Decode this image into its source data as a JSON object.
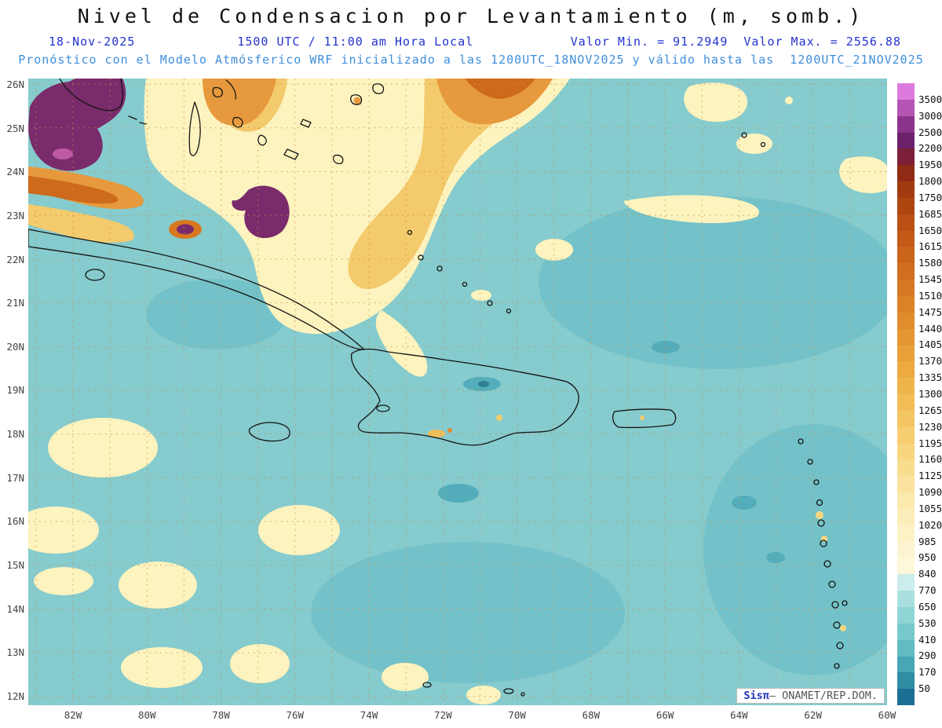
{
  "title": "Nivel de Condensacion por Levantamiento (m, somb.)",
  "header": {
    "date": "18-Nov-2025",
    "time": "1500 UTC / 11:00 am Hora Local",
    "min": "Valor Min. = 91.2949",
    "max": "Valor Max. = 2556.88",
    "forecast": "Pronóstico con el Modelo Atmósferico WRF inicializado a las 1200UTC_18NOV2025 y válido hasta las  1200UTC_21NOV2025"
  },
  "axes": {
    "lat": [
      "26N",
      "25N",
      "24N",
      "23N",
      "22N",
      "21N",
      "20N",
      "19N",
      "18N",
      "17N",
      "16N",
      "15N",
      "14N",
      "13N",
      "12N"
    ],
    "lon": [
      "82W",
      "80W",
      "78W",
      "76W",
      "74W",
      "72W",
      "70W",
      "68W",
      "66W",
      "64W",
      "62W",
      "60W"
    ]
  },
  "colorbar": {
    "labels": [
      3500,
      3000,
      2500,
      2200,
      1950,
      1800,
      1750,
      1685,
      1650,
      1615,
      1580,
      1545,
      1510,
      1475,
      1440,
      1405,
      1370,
      1335,
      1300,
      1265,
      1230,
      1195,
      1160,
      1125,
      1090,
      1055,
      1020,
      985,
      950,
      840,
      770,
      650,
      530,
      410,
      290,
      170,
      50
    ],
    "colors": [
      "#DD7ADD",
      "#B455B4",
      "#8C338C",
      "#6B216B",
      "#7C1F38",
      "#8F2A14",
      "#A23A10",
      "#AF4612",
      "#BA5014",
      "#C35A17",
      "#CA641B",
      "#D16E1F",
      "#D77823",
      "#DC8227",
      "#E18C2D",
      "#E59633",
      "#E9A039",
      "#ECAA41",
      "#EFB44B",
      "#F2BD57",
      "#F4C663",
      "#F6CE71",
      "#F8D67F",
      "#F9DD8F",
      "#FBE39F",
      "#FCE9AD",
      "#FCEEBA",
      "#FDF2C6",
      "#FDF5D1",
      "#FEF8DB",
      "#CBEDEB",
      "#A9E0DF",
      "#8FD5D5",
      "#77C9CC",
      "#61BBC3",
      "#48A7B5",
      "#2F8DA4",
      "#1C6F94"
    ]
  },
  "attribution": {
    "brand": "Sisπ",
    "org": "– ONAMET/REP.DOM."
  },
  "chart_data": {
    "type": "heatmap",
    "title": "Nivel de Condensacion por Levantamiento (m, somb.)",
    "units": "m",
    "model": "WRF",
    "date": "18-Nov-2025",
    "valid_time": "1500 UTC / 11:00 am Hora Local",
    "initialized": "1200UTC_18NOV2025",
    "valid_until": "1200UTC_21NOV2025",
    "value_min": 91.2949,
    "value_max": 2556.88,
    "lat_range": [
      "12N",
      "26N"
    ],
    "lon_range": [
      "83W",
      "60W"
    ],
    "contour_levels": [
      50,
      170,
      290,
      410,
      530,
      650,
      770,
      840,
      950,
      985,
      1020,
      1055,
      1090,
      1125,
      1160,
      1195,
      1230,
      1265,
      1300,
      1335,
      1370,
      1405,
      1440,
      1475,
      1510,
      1545,
      1580,
      1615,
      1650,
      1685,
      1750,
      1800,
      1950,
      2200,
      2500,
      3000,
      3500
    ],
    "legend_position": "right",
    "grid": "dotted 1-degree lat/lon",
    "summary": "Mostly 530-840 m (teal) over Caribbean sea; 950-1400 m band (yellow/orange) from Gulf/Bahamas diagonally across Cuba into central Atlantic; maxima >2200 m (purple) over south Florida and spots on Cuba; scattered 950-1100 m patches southwest and along Lesser Antilles."
  }
}
